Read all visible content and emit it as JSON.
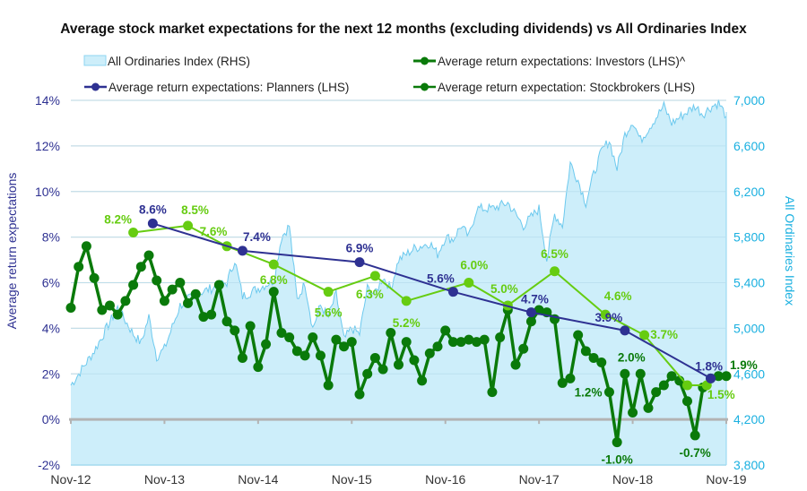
{
  "chart_data": {
    "type": "line",
    "title": "Average stock market expectations for the next 12 months (excluding dividends) vs All Ordinaries Index",
    "ylabel": "Average return expectations",
    "y2label": "All Ordinaries Index",
    "ylim": [
      -2,
      14
    ],
    "y2lim": [
      3800,
      7000
    ],
    "grid": true,
    "legend_position": "top",
    "x_ticks": [
      "Nov-12",
      "Nov-13",
      "Nov-14",
      "Nov-15",
      "Nov-16",
      "Nov-17",
      "Nov-18",
      "Nov-19"
    ],
    "y_ticks": [
      "-2%",
      "0%",
      "2%",
      "4%",
      "6%",
      "8%",
      "10%",
      "12%",
      "14%"
    ],
    "y2_ticks": [
      "3,800",
      "4,200",
      "4,600",
      "5,000",
      "5,400",
      "5,800",
      "6,200",
      "6,600",
      "7,000"
    ],
    "colors": {
      "index_fill": "#cdeefa",
      "index_line": "#6cc9ee",
      "planners": "#2e3192",
      "investors": "#0a7a0a",
      "stockbrokers": "#66cc11",
      "zero_line": "#b3b3b3",
      "grid": "#dddddd"
    },
    "legend": [
      {
        "key": "index",
        "label": "All Ordinaries Index (RHS)"
      },
      {
        "key": "investors",
        "label": "Average return expectations: Investors (LHS)^"
      },
      {
        "key": "planners",
        "label": "Average return expectations: Planners (LHS)"
      },
      {
        "key": "stockbrokers",
        "label": "Average return expectation: Stockbrokers (LHS)"
      }
    ],
    "index_series": {
      "name": "All Ordinaries Index (RHS)",
      "months_from_start": [
        0,
        3,
        6,
        8,
        9,
        10,
        11,
        12,
        14,
        16,
        18,
        20,
        21,
        22,
        24,
        26,
        27,
        28,
        29,
        30,
        31,
        32,
        33,
        34,
        35,
        36,
        37,
        38,
        39,
        40,
        41,
        42,
        44,
        46,
        47,
        48,
        49,
        50,
        51,
        52,
        54,
        56,
        58,
        60,
        61,
        62,
        63,
        64,
        65,
        66,
        67,
        68,
        69,
        70,
        71,
        72,
        73,
        74,
        75,
        76,
        77,
        78,
        79,
        80,
        81,
        82,
        83,
        84
      ],
      "values": [
        4500,
        4800,
        5180,
        4950,
        4870,
        5100,
        4750,
        4820,
        5200,
        5300,
        5350,
        5400,
        5600,
        5280,
        5350,
        5420,
        5800,
        5900,
        5250,
        5400,
        5000,
        5200,
        5100,
        5300,
        4900,
        5000,
        4950,
        5350,
        5300,
        5450,
        5350,
        5600,
        5700,
        5750,
        5650,
        5800,
        5780,
        5900,
        5800,
        6050,
        6050,
        6100,
        5900,
        6050,
        5600,
        6000,
        5900,
        6450,
        6300,
        6100,
        6350,
        6550,
        6650,
        6400,
        6700,
        6820,
        6650,
        6750,
        6850,
        6950,
        6800,
        6850,
        6900,
        6950,
        6880,
        6940,
        6980,
        6860
      ]
    },
    "series": [
      {
        "name": "Average return expectations: Investors (LHS)^",
        "key": "investors",
        "months_from_start": [
          0,
          1,
          2,
          3,
          4,
          5,
          6,
          7,
          8,
          9,
          10,
          11,
          12,
          13,
          14,
          15,
          16,
          17,
          18,
          19,
          20,
          21,
          22,
          23,
          24,
          25,
          26,
          27,
          28,
          29,
          30,
          31,
          32,
          33,
          34,
          35,
          36,
          37,
          38,
          39,
          40,
          41,
          42,
          43,
          44,
          45,
          46,
          47,
          48,
          49,
          50,
          51,
          52,
          53,
          54,
          55,
          56,
          57,
          58,
          59,
          60,
          61,
          62,
          63,
          64,
          65,
          66,
          67,
          68,
          69,
          70,
          71,
          72,
          73,
          74,
          75,
          76,
          77,
          78,
          79,
          80,
          81,
          82,
          83,
          84
        ],
        "values": [
          4.9,
          6.7,
          7.6,
          6.2,
          4.8,
          5.0,
          4.6,
          5.2,
          5.9,
          6.7,
          7.2,
          6.1,
          5.2,
          5.7,
          6.0,
          5.1,
          5.5,
          4.5,
          4.6,
          5.9,
          4.3,
          3.9,
          2.7,
          4.1,
          2.3,
          3.3,
          5.6,
          3.8,
          3.6,
          3.0,
          2.8,
          3.6,
          2.8,
          1.5,
          3.5,
          3.2,
          3.4,
          1.1,
          2.0,
          2.7,
          2.2,
          3.8,
          2.4,
          3.4,
          2.6,
          1.7,
          2.9,
          3.2,
          3.9,
          3.4,
          3.4,
          3.5,
          3.4,
          3.5,
          1.2,
          3.6,
          4.8,
          2.4,
          3.1,
          4.3,
          4.8,
          4.7,
          4.4,
          1.6,
          1.8,
          3.7,
          3.0,
          2.7,
          2.5,
          1.2,
          -1.0,
          2.0,
          0.3,
          2.0,
          0.5,
          1.2,
          1.5,
          1.9,
          1.7,
          0.8,
          -0.7,
          1.4,
          1.8,
          1.9,
          1.9
        ],
        "labels": [
          {
            "index": 69,
            "text": "1.2%",
            "pos": "left"
          },
          {
            "index": 70,
            "text": "-1.0%",
            "pos": "below"
          },
          {
            "index": 73,
            "text": "2.0%",
            "pos": "above"
          },
          {
            "index": 80,
            "text": "-0.7%",
            "pos": "below"
          },
          {
            "index": 84,
            "text": "1.9%",
            "pos": "right"
          }
        ]
      },
      {
        "name": "Average return expectations: Planners (LHS)",
        "key": "planners",
        "months_from_start": [
          10.5,
          22,
          37,
          49,
          59,
          71,
          82
        ],
        "values": [
          8.6,
          7.4,
          6.9,
          5.6,
          4.7,
          3.9,
          1.8
        ],
        "labels": [
          "8.6%",
          "7.4%",
          "6.9%",
          "5.6%",
          "4.7%",
          "3.9%",
          "1.8%"
        ]
      },
      {
        "name": "Average return expectation: Stockbrokers (LHS)",
        "key": "stockbrokers",
        "months_from_start": [
          8,
          15,
          20,
          26,
          33,
          39,
          43,
          51,
          56,
          62,
          68.5,
          73.5,
          79,
          81.5
        ],
        "values": [
          8.2,
          8.5,
          7.6,
          6.8,
          5.6,
          6.3,
          5.2,
          6.0,
          5.0,
          6.5,
          4.6,
          3.7,
          1.5,
          1.5
        ],
        "labels": [
          "8.2%",
          "8.5%",
          "7.6%",
          "6.8%",
          "5.6%",
          "6.3%",
          "5.2%",
          "6.0%",
          "5.0%",
          "6.5%",
          "4.6%",
          "3.7%",
          "",
          "1.5%"
        ]
      }
    ]
  }
}
